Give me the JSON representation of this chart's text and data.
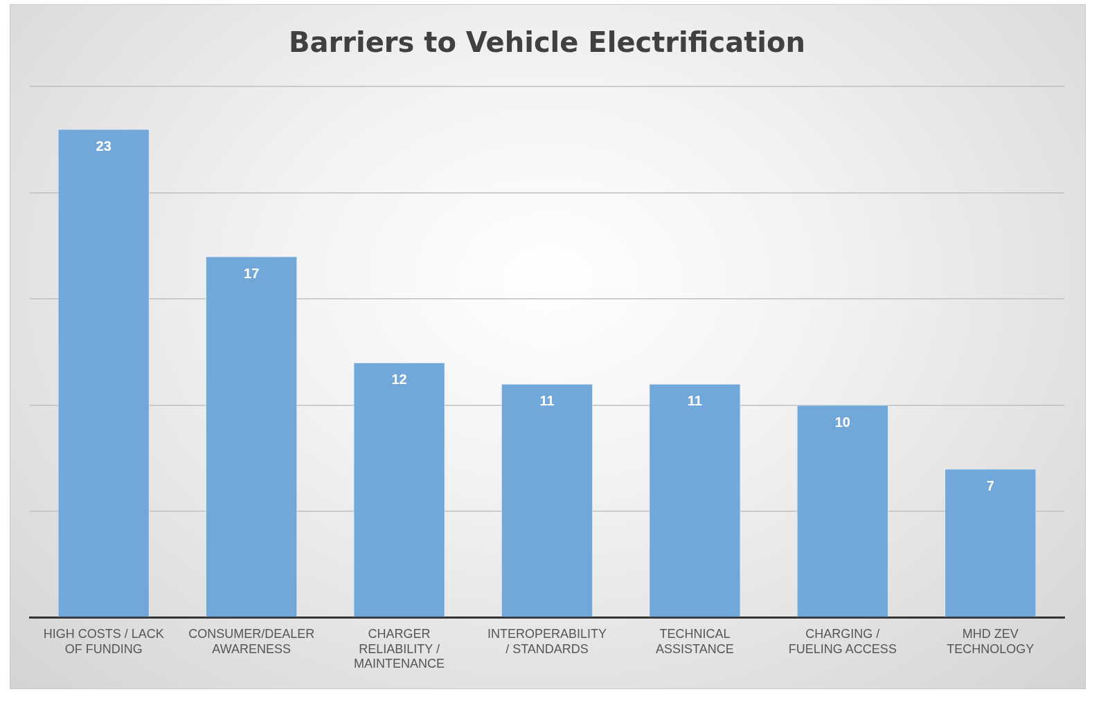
{
  "chart_data": {
    "type": "bar",
    "title": "Barriers to Vehicle Electrification",
    "categories": [
      "HIGH COSTS / LACK OF FUNDING",
      "CONSUMER/DEALER AWARENESS",
      "CHARGER RELIABILITY / MAINTENANCE",
      "INTEROPERABILITY / STANDARDS",
      "TECHNICAL ASSISTANCE",
      "CHARGING / FUELING ACCESS",
      "MHD ZEV TECHNOLOGY"
    ],
    "values": [
      23,
      17,
      12,
      11,
      11,
      10,
      7
    ],
    "color": "#72a7d9",
    "ylim": [
      0,
      25
    ],
    "yticks": [
      {
        "value": 0,
        "label": null
      },
      {
        "value": 5,
        "label": null
      },
      {
        "value": 10,
        "label": null
      },
      {
        "value": 15,
        "label": null
      },
      {
        "value": 20,
        "label": null
      },
      {
        "value": 25,
        "label": null
      }
    ],
    "tick_labels": "x",
    "grid": "y",
    "legend": false,
    "data_labels": true
  }
}
